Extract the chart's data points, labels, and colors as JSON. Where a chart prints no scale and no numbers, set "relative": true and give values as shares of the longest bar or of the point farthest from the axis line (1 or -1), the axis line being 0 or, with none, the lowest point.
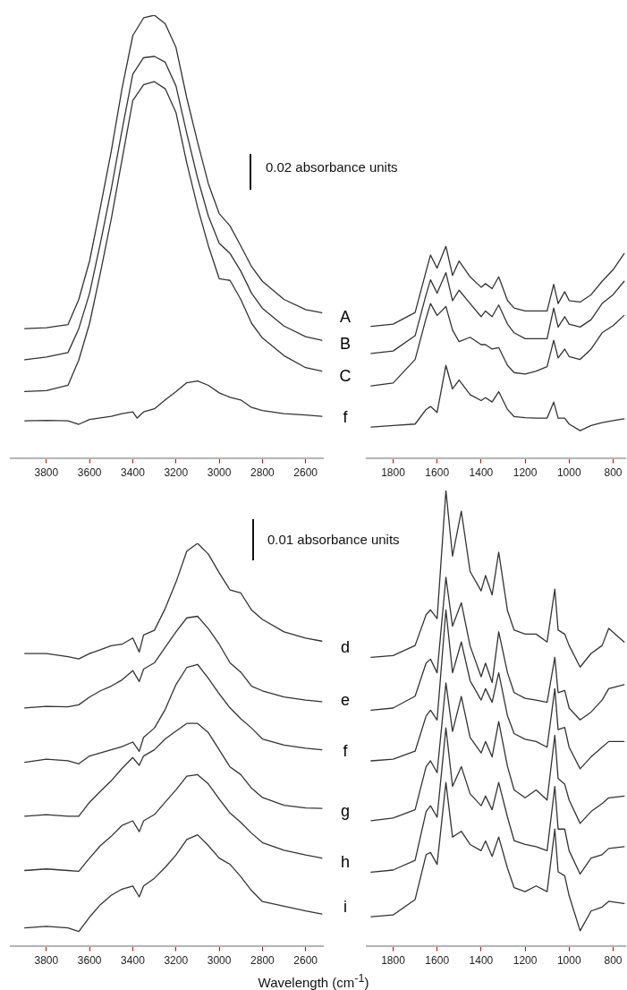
{
  "chart_data": [
    {
      "type": "line",
      "relative": true,
      "xlim": [
        3965,
        2520
      ],
      "xticks": [
        3800,
        3600,
        3400,
        3200,
        3000,
        2800,
        2600
      ],
      "annotations": [
        "0.02 absorbance units"
      ],
      "x": [
        3900,
        3800,
        3700,
        3650,
        3600,
        3550,
        3500,
        3450,
        3400,
        3350,
        3300,
        3250,
        3200,
        3150,
        3100,
        3050,
        3000,
        2950,
        2900,
        2850,
        2800,
        2700,
        2600,
        2525
      ],
      "series": [
        {
          "color": "#333333",
          "values": [
            0.292,
            0.294,
            0.301,
            0.358,
            0.445,
            0.566,
            0.692,
            0.834,
            0.954,
            0.994,
            1,
            0.981,
            0.927,
            0.813,
            0.713,
            0.619,
            0.552,
            0.524,
            0.479,
            0.432,
            0.399,
            0.358,
            0.335,
            0.328
          ]
        },
        {
          "color": "#333333",
          "values": [
            0.222,
            0.228,
            0.238,
            0.292,
            0.372,
            0.485,
            0.606,
            0.74,
            0.867,
            0.904,
            0.907,
            0.894,
            0.84,
            0.733,
            0.632,
            0.546,
            0.485,
            0.462,
            0.422,
            0.372,
            0.338,
            0.298,
            0.274,
            0.266
          ]
        },
        {
          "color": "#333333",
          "values": [
            0.15,
            0.152,
            0.164,
            0.221,
            0.304,
            0.418,
            0.539,
            0.673,
            0.807,
            0.843,
            0.85,
            0.834,
            0.78,
            0.666,
            0.566,
            0.479,
            0.405,
            0.401,
            0.358,
            0.304,
            0.271,
            0.231,
            0.204,
            0.196
          ]
        },
        {
          "color": "#333333",
          "x": [
            3900,
            3800,
            3700,
            3650,
            3600,
            3500,
            3450,
            3400,
            3380,
            3350,
            3300,
            3250,
            3200,
            3150,
            3100,
            3050,
            3000,
            2950,
            2900,
            2850,
            2800,
            2700,
            2600,
            2525
          ],
          "values": [
            0.084,
            0.085,
            0.084,
            0.076,
            0.087,
            0.094,
            0.1,
            0.104,
            0.09,
            0.104,
            0.111,
            0.131,
            0.15,
            0.17,
            0.174,
            0.164,
            0.147,
            0.137,
            0.131,
            0.114,
            0.107,
            0.1,
            0.097,
            0.094
          ]
        }
      ]
    },
    {
      "type": "line",
      "relative": true,
      "xlim": [
        1920,
        745
      ],
      "xticks": [
        1800,
        1600,
        1400,
        1200,
        1000,
        800
      ],
      "x": [
        1900,
        1800,
        1700,
        1650,
        1630,
        1600,
        1560,
        1530,
        1500,
        1450,
        1400,
        1380,
        1350,
        1320,
        1280,
        1250,
        1200,
        1150,
        1100,
        1070,
        1050,
        1020,
        1000,
        950,
        900,
        850,
        800,
        750
      ],
      "series": [
        {
          "name": "A",
          "color": "#333333",
          "values": [
            0.621,
            0.632,
            0.687,
            0.882,
            0.958,
            0.896,
            1,
            0.862,
            0.93,
            0.855,
            0.806,
            0.823,
            0.799,
            0.855,
            0.743,
            0.708,
            0.694,
            0.694,
            0.694,
            0.82,
            0.729,
            0.785,
            0.743,
            0.736,
            0.771,
            0.834,
            0.889,
            0.965
          ]
        },
        {
          "name": "B",
          "color": "#333333",
          "values": [
            0.493,
            0.505,
            0.577,
            0.771,
            0.841,
            0.778,
            0.875,
            0.743,
            0.792,
            0.729,
            0.667,
            0.694,
            0.667,
            0.722,
            0.632,
            0.591,
            0.563,
            0.563,
            0.563,
            0.708,
            0.618,
            0.667,
            0.632,
            0.618,
            0.653,
            0.729,
            0.771,
            0.834
          ]
        },
        {
          "name": "C",
          "color": "#333333",
          "values": [
            0.34,
            0.354,
            0.465,
            0.66,
            0.729,
            0.673,
            0.715,
            0.604,
            0.549,
            0.57,
            0.535,
            0.535,
            0.514,
            0.521,
            0.437,
            0.403,
            0.396,
            0.41,
            0.431,
            0.556,
            0.472,
            0.514,
            0.479,
            0.465,
            0.514,
            0.591,
            0.625,
            0.673
          ]
        },
        {
          "name": "f",
          "color": "#333333",
          "values": [
            0.146,
            0.153,
            0.16,
            0.229,
            0.243,
            0.215,
            0.437,
            0.326,
            0.368,
            0.299,
            0.271,
            0.285,
            0.264,
            0.313,
            0.229,
            0.195,
            0.19,
            0.188,
            0.188,
            0.264,
            0.188,
            0.188,
            0.16,
            0.129,
            0.153,
            0.167,
            0.176,
            0.185
          ]
        }
      ]
    },
    {
      "type": "line",
      "relative": true,
      "xlim": [
        3965,
        2520
      ],
      "xticks": [
        3800,
        3600,
        3400,
        3200,
        3000,
        2800,
        2600
      ],
      "xlabel": "Wavelength (cm$^{-1}$)",
      "annotations": [
        "0.01 absorbance units"
      ],
      "x": [
        3900,
        3800,
        3700,
        3650,
        3600,
        3550,
        3500,
        3450,
        3400,
        3370,
        3350,
        3300,
        3250,
        3200,
        3150,
        3100,
        3050,
        3000,
        2950,
        2900,
        2850,
        2800,
        2700,
        2600,
        2525
      ],
      "series": [
        {
          "color": "#333333",
          "values": [
            0.716,
            0.716,
            0.708,
            0.702,
            0.716,
            0.726,
            0.736,
            0.74,
            0.756,
            0.72,
            0.764,
            0.776,
            0.832,
            0.9,
            0.98,
            1,
            0.972,
            0.924,
            0.88,
            0.872,
            0.828,
            0.804,
            0.772,
            0.756,
            0.748
          ]
        },
        {
          "color": "#333333",
          "values": [
            0.576,
            0.58,
            0.579,
            0.584,
            0.604,
            0.62,
            0.632,
            0.648,
            0.672,
            0.644,
            0.676,
            0.692,
            0.732,
            0.772,
            0.808,
            0.812,
            0.78,
            0.74,
            0.692,
            0.668,
            0.632,
            0.62,
            0.604,
            0.596,
            0.592
          ]
        },
        {
          "color": "#333333",
          "values": [
            0.436,
            0.444,
            0.44,
            0.432,
            0.452,
            0.46,
            0.468,
            0.476,
            0.488,
            0.464,
            0.5,
            0.524,
            0.572,
            0.636,
            0.68,
            0.688,
            0.652,
            0.612,
            0.576,
            0.548,
            0.524,
            0.496,
            0.48,
            0.472,
            0.468
          ]
        },
        {
          "color": "#333333",
          "values": [
            0.297,
            0.301,
            0.297,
            0.297,
            0.333,
            0.361,
            0.388,
            0.42,
            0.448,
            0.428,
            0.452,
            0.468,
            0.496,
            0.516,
            0.536,
            0.536,
            0.512,
            0.468,
            0.424,
            0.404,
            0.369,
            0.345,
            0.325,
            0.318,
            0.317
          ]
        },
        {
          "color": "#333333",
          "values": [
            0.157,
            0.161,
            0.157,
            0.155,
            0.189,
            0.221,
            0.245,
            0.273,
            0.285,
            0.257,
            0.285,
            0.301,
            0.333,
            0.365,
            0.4,
            0.404,
            0.38,
            0.341,
            0.305,
            0.281,
            0.253,
            0.229,
            0.209,
            0.197,
            0.189
          ]
        },
        {
          "color": "#333333",
          "values": [
            0.009,
            0.013,
            0.009,
            0,
            0.037,
            0.069,
            0.093,
            0.109,
            0.117,
            0.089,
            0.117,
            0.137,
            0.165,
            0.197,
            0.237,
            0.249,
            0.221,
            0.189,
            0.173,
            0.141,
            0.105,
            0.077,
            0.065,
            0.053,
            0.045
          ]
        }
      ]
    },
    {
      "type": "line",
      "relative": true,
      "xlim": [
        1920,
        745
      ],
      "xticks": [
        1800,
        1600,
        1400,
        1200,
        1000,
        800
      ],
      "x": [
        1900,
        1800,
        1700,
        1650,
        1630,
        1600,
        1560,
        1530,
        1490,
        1450,
        1400,
        1380,
        1350,
        1320,
        1280,
        1250,
        1200,
        1150,
        1100,
        1065,
        1050,
        1020,
        1000,
        950,
        900,
        850,
        820,
        750
      ],
      "series": [
        {
          "name": "d",
          "color": "#333333",
          "values": [
            0.621,
            0.625,
            0.648,
            0.718,
            0.729,
            0.709,
            1,
            0.851,
            0.953,
            0.816,
            0.772,
            0.807,
            0.763,
            0.86,
            0.727,
            0.683,
            0.674,
            0.674,
            0.656,
            0.776,
            0.683,
            0.674,
            0.648,
            0.599,
            0.63,
            0.648,
            0.687,
            0.656
          ]
        },
        {
          "name": "e",
          "color": "#333333",
          "values": [
            0.501,
            0.506,
            0.533,
            0.608,
            0.617,
            0.586,
            0.803,
            0.692,
            0.745,
            0.647,
            0.577,
            0.608,
            0.564,
            0.679,
            0.586,
            0.541,
            0.528,
            0.524,
            0.519,
            0.621,
            0.541,
            0.546,
            0.506,
            0.479,
            0.497,
            0.524,
            0.55,
            0.559
          ]
        },
        {
          "name": "f",
          "color": "#333333",
          "values": [
            0.386,
            0.39,
            0.408,
            0.488,
            0.501,
            0.479,
            0.729,
            0.586,
            0.656,
            0.568,
            0.524,
            0.55,
            0.519,
            0.586,
            0.488,
            0.448,
            0.435,
            0.43,
            0.417,
            0.55,
            0.457,
            0.462,
            0.417,
            0.368,
            0.395,
            0.417,
            0.43,
            0.43
          ]
        },
        {
          "name": "g",
          "color": "#333333",
          "values": [
            0.25,
            0.256,
            0.275,
            0.373,
            0.386,
            0.359,
            0.563,
            0.453,
            0.532,
            0.439,
            0.404,
            0.43,
            0.395,
            0.475,
            0.373,
            0.32,
            0.302,
            0.32,
            0.297,
            0.444,
            0.346,
            0.333,
            0.297,
            0.244,
            0.271,
            0.289,
            0.302,
            0.306
          ]
        },
        {
          "name": "h",
          "color": "#333333",
          "values": [
            0.133,
            0.138,
            0.16,
            0.271,
            0.284,
            0.258,
            0.461,
            0.328,
            0.373,
            0.311,
            0.284,
            0.306,
            0.275,
            0.337,
            0.258,
            0.205,
            0.196,
            0.191,
            0.182,
            0.328,
            0.231,
            0.231,
            0.182,
            0.129,
            0.165,
            0.173,
            0.187,
            0.191
          ]
        },
        {
          "name": "i",
          "color": "#333333",
          "values": [
            0.032,
            0.036,
            0.071,
            0.173,
            0.178,
            0.151,
            0.337,
            0.213,
            0.226,
            0.196,
            0.182,
            0.204,
            0.169,
            0.213,
            0.142,
            0.098,
            0.089,
            0.102,
            0.089,
            0.231,
            0.134,
            0.125,
            0.08,
            0,
            0.045,
            0.054,
            0.067,
            0.062
          ]
        }
      ]
    }
  ]
}
